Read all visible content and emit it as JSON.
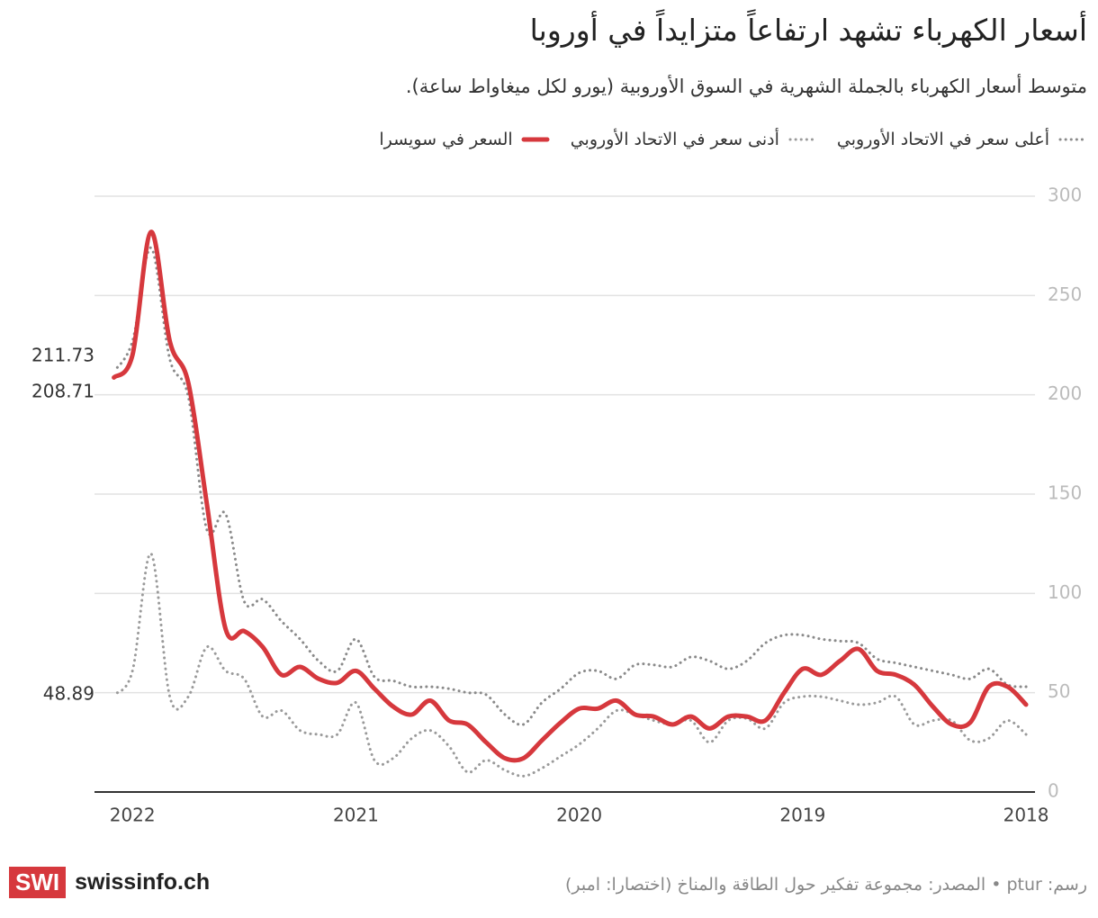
{
  "chart_data": {
    "type": "line",
    "title": "أسعار الكهرباء تشهد ارتفاعاً متزايداً في أوروبا",
    "subtitle": "متوسط أسعار الكهرباء بالجملة الشهرية في السوق الأوروبية (يورو لكل ميغاواط ساعة).",
    "x": [
      2018,
      2018.083,
      2018.167,
      2018.25,
      2018.333,
      2018.417,
      2018.5,
      2018.583,
      2018.667,
      2018.75,
      2018.833,
      2018.917,
      2019,
      2019.083,
      2019.167,
      2019.25,
      2019.333,
      2019.417,
      2019.5,
      2019.583,
      2019.667,
      2019.75,
      2019.833,
      2019.917,
      2020,
      2020.083,
      2020.167,
      2020.25,
      2020.333,
      2020.417,
      2020.5,
      2020.583,
      2020.667,
      2020.75,
      2020.833,
      2020.917,
      2021,
      2021.083,
      2021.167,
      2021.25,
      2021.333,
      2021.417,
      2021.5,
      2021.583,
      2021.667,
      2021.75,
      2021.833,
      2021.917,
      2022,
      2022.083
    ],
    "series": [
      {
        "name": "أعلى سعر في الاتحاد الأوروبي",
        "color": "#8a8a8a",
        "style": "dotted",
        "end_label": "211.73",
        "values": [
          53,
          54,
          62,
          57,
          59,
          61,
          63,
          65,
          67,
          75,
          76,
          77,
          79,
          79,
          75,
          66,
          62,
          66,
          68,
          63,
          64,
          64,
          57,
          61,
          60,
          52,
          45,
          34,
          39,
          49,
          50,
          52,
          53,
          53,
          56,
          58,
          77,
          61,
          66,
          77,
          86,
          97,
          96,
          140,
          132,
          199,
          218,
          274,
          227,
          211.73
        ]
      },
      {
        "name": "أدنى سعر في الاتحاد الأوروبي",
        "color": "#9a9a9a",
        "style": "dotted",
        "end_label": "48.89",
        "values": [
          29,
          36,
          27,
          26,
          36,
          36,
          34,
          48,
          45,
          44,
          46,
          48,
          48,
          45,
          32,
          37,
          36,
          25,
          36,
          34,
          36,
          39,
          41,
          32,
          24,
          18,
          12,
          8,
          11,
          16,
          10,
          23,
          31,
          27,
          17,
          16,
          45,
          29,
          29,
          31,
          41,
          38,
          57,
          61,
          73,
          48,
          48,
          120,
          61,
          48.89
        ]
      },
      {
        "name": "السعر في سويسرا",
        "color": "#d6383d",
        "style": "solid",
        "end_label": "208.71",
        "values": [
          44,
          53,
          53,
          35,
          34,
          43,
          54,
          59,
          61,
          72,
          66,
          59,
          62,
          50,
          36,
          38,
          38,
          32,
          38,
          34,
          38,
          39,
          46,
          42,
          42,
          35,
          26,
          17,
          17,
          25,
          34,
          36,
          46,
          39,
          43,
          52,
          61,
          55,
          57,
          63,
          59,
          73,
          81,
          82,
          145,
          206,
          227,
          282,
          220,
          208.71
        ]
      }
    ],
    "xlim": [
      2022.17,
      2017.96
    ],
    "xticks": [
      2022,
      2021,
      2020,
      2019,
      2018
    ],
    "ylim": [
      0,
      300
    ],
    "yticks": [
      0,
      50,
      100,
      150,
      200,
      250,
      300
    ],
    "grid": true,
    "source": "رسم: ptur • المصدر: مجموعة تفكير حول الطاقة والمناخ (اختصارا: امبر)",
    "brand": {
      "logo": "SWI",
      "name": "swissinfo.ch"
    }
  }
}
